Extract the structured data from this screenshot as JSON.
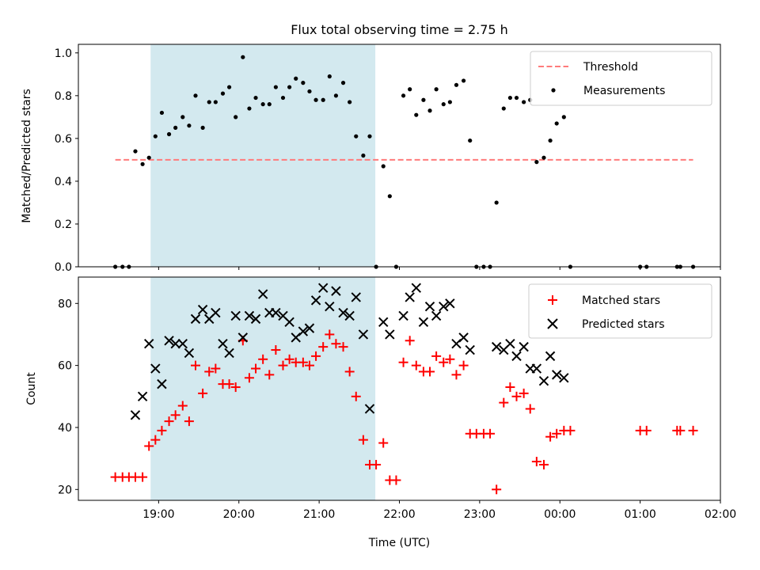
{
  "chart_data": [
    {
      "type": "scatter",
      "title": "Flux total observing time = 2.75 h",
      "xlabel": "",
      "ylabel": "Matched/Predicted stars",
      "ylim": [
        0,
        1.04
      ],
      "yticks": [
        "0.0",
        "0.2",
        "0.4",
        "0.6",
        "0.8",
        "1.0"
      ],
      "xticks": [
        "19:00",
        "20:00",
        "21:00",
        "22:00",
        "23:00",
        "00:00",
        "01:00",
        "02:00"
      ],
      "xlim_hours": [
        18.0,
        26.0
      ],
      "shaded_interval_hours": [
        18.9,
        21.7
      ],
      "shade_color": "#d3e9ef",
      "legend": {
        "placement": "top-right",
        "entries": [
          "Threshold",
          "Measurements"
        ]
      },
      "series": [
        {
          "name": "Threshold",
          "style": "dashed-line",
          "color": "#ff7b7b",
          "x": [
            18.46,
            25.66
          ],
          "y": [
            0.5,
            0.5
          ]
        },
        {
          "name": "Measurements",
          "style": "dot",
          "color": "#000000",
          "x": [
            18.46,
            18.55,
            18.63,
            18.71,
            18.8,
            18.88,
            18.96,
            19.04,
            19.13,
            19.21,
            19.3,
            19.38,
            19.46,
            19.55,
            19.63,
            19.71,
            19.8,
            19.88,
            19.96,
            20.05,
            20.13,
            20.21,
            20.3,
            20.38,
            20.46,
            20.55,
            20.63,
            20.71,
            20.8,
            20.88,
            20.96,
            21.05,
            21.13,
            21.21,
            21.3,
            21.38,
            21.46,
            21.55,
            21.63,
            21.71,
            21.8,
            21.88,
            21.96,
            22.05,
            22.13,
            22.21,
            22.3,
            22.38,
            22.46,
            22.55,
            22.63,
            22.71,
            22.8,
            22.88,
            22.96,
            23.05,
            23.13,
            23.21,
            23.3,
            23.38,
            23.46,
            23.55,
            23.63,
            23.71,
            23.8,
            23.88,
            23.96,
            24.05,
            24.13,
            25.0,
            25.08,
            25.46,
            25.5,
            25.66
          ],
          "y": [
            0.0,
            0.0,
            0.0,
            0.54,
            0.48,
            0.51,
            0.61,
            0.72,
            0.62,
            0.65,
            0.7,
            0.66,
            0.8,
            0.65,
            0.77,
            0.77,
            0.81,
            0.84,
            0.7,
            0.98,
            0.74,
            0.79,
            0.76,
            0.76,
            0.84,
            0.79,
            0.84,
            0.88,
            0.86,
            0.82,
            0.78,
            0.78,
            0.89,
            0.8,
            0.86,
            0.77,
            0.61,
            0.52,
            0.61,
            0.0,
            0.47,
            0.33,
            0.0,
            0.8,
            0.83,
            0.71,
            0.78,
            0.73,
            0.83,
            0.76,
            0.77,
            0.85,
            0.87,
            0.59,
            0.0,
            0.0,
            0.0,
            0.3,
            0.74,
            0.79,
            0.79,
            0.77,
            0.78,
            0.49,
            0.51,
            0.59,
            0.67,
            0.7,
            0.0,
            0.0,
            0.0,
            0.0,
            0.0,
            0.0
          ]
        }
      ]
    },
    {
      "type": "scatter",
      "title": "",
      "xlabel": "Time (UTC)",
      "ylabel": "Count",
      "ylim": [
        16.5,
        88.5
      ],
      "yticks": [
        "20",
        "40",
        "60",
        "80"
      ],
      "xticks": [
        "19:00",
        "20:00",
        "21:00",
        "22:00",
        "23:00",
        "00:00",
        "01:00",
        "02:00"
      ],
      "xlim_hours": [
        18.0,
        26.0
      ],
      "shaded_interval_hours": [
        18.9,
        21.7
      ],
      "shade_color": "#d3e9ef",
      "legend": {
        "placement": "top-right",
        "entries": [
          "Matched stars",
          "Predicted stars"
        ]
      },
      "series": [
        {
          "name": "Matched stars",
          "marker": "plus",
          "color": "#ff0000",
          "x": [
            18.46,
            18.55,
            18.63,
            18.71,
            18.8,
            18.88,
            18.96,
            19.04,
            19.13,
            19.21,
            19.3,
            19.38,
            19.46,
            19.55,
            19.63,
            19.71,
            19.8,
            19.88,
            19.96,
            20.05,
            20.13,
            20.21,
            20.3,
            20.38,
            20.46,
            20.55,
            20.63,
            20.71,
            20.8,
            20.88,
            20.96,
            21.05,
            21.13,
            21.21,
            21.3,
            21.38,
            21.46,
            21.55,
            21.63,
            21.71,
            21.8,
            21.88,
            21.96,
            22.05,
            22.13,
            22.21,
            22.3,
            22.38,
            22.46,
            22.55,
            22.63,
            22.71,
            22.8,
            22.88,
            22.96,
            23.05,
            23.13,
            23.21,
            23.3,
            23.38,
            23.46,
            23.55,
            23.63,
            23.71,
            23.8,
            23.88,
            23.96,
            24.05,
            24.13,
            25.0,
            25.08,
            25.46,
            25.5,
            25.66
          ],
          "y": [
            24,
            24,
            24,
            24,
            24,
            34,
            36,
            39,
            42,
            44,
            47,
            42,
            60,
            51,
            58,
            59,
            54,
            54,
            53,
            68,
            56,
            59,
            62,
            57,
            65,
            60,
            62,
            61,
            61,
            60,
            63,
            66,
            70,
            67,
            66,
            58,
            50,
            36,
            28,
            28,
            35,
            23,
            23,
            61,
            68,
            60,
            58,
            58,
            63,
            61,
            62,
            57,
            60,
            38,
            38,
            38,
            38,
            20,
            48,
            53,
            50,
            51,
            46,
            29,
            28,
            37,
            38,
            39,
            39,
            39,
            39,
            39,
            39,
            39
          ]
        },
        {
          "name": "Predicted stars",
          "marker": "x",
          "color": "#000000",
          "x": [
            18.71,
            18.8,
            18.88,
            18.96,
            19.04,
            19.13,
            19.21,
            19.3,
            19.38,
            19.46,
            19.55,
            19.63,
            19.71,
            19.8,
            19.88,
            19.96,
            20.05,
            20.13,
            20.21,
            20.3,
            20.38,
            20.46,
            20.55,
            20.63,
            20.71,
            20.8,
            20.88,
            20.96,
            21.05,
            21.13,
            21.21,
            21.3,
            21.38,
            21.46,
            21.55,
            21.63,
            21.8,
            21.88,
            22.05,
            22.13,
            22.21,
            22.3,
            22.38,
            22.46,
            22.55,
            22.63,
            22.71,
            22.8,
            22.88,
            23.21,
            23.3,
            23.38,
            23.46,
            23.55,
            23.63,
            23.71,
            23.8,
            23.88,
            23.96,
            24.05
          ],
          "y": [
            44,
            50,
            67,
            59,
            54,
            68,
            67,
            67,
            64,
            75,
            78,
            75,
            77,
            67,
            64,
            76,
            69,
            76,
            75,
            83,
            77,
            77,
            76,
            74,
            69,
            71,
            72,
            81,
            85,
            79,
            84,
            77,
            76,
            82,
            70,
            46,
            74,
            70,
            76,
            82,
            85,
            74,
            79,
            76,
            79,
            80,
            67,
            69,
            65,
            66,
            65,
            67,
            63,
            66,
            59,
            59,
            55,
            63,
            57,
            56
          ]
        }
      ]
    }
  ]
}
